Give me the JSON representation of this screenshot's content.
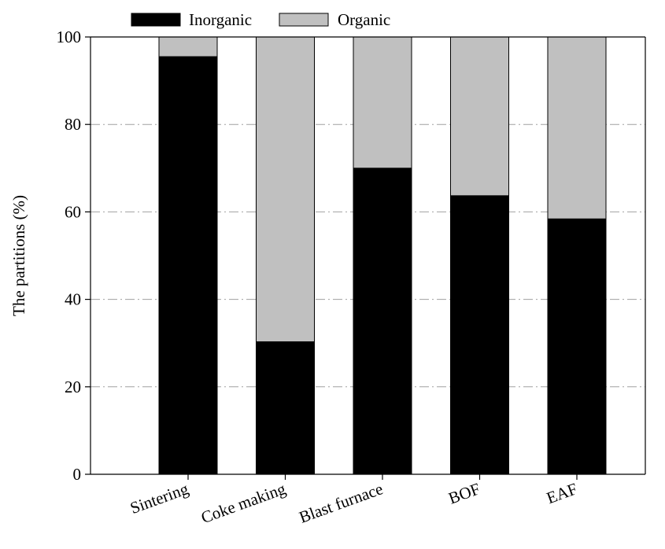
{
  "chart_data": {
    "type": "bar",
    "stacked": true,
    "categories": [
      "Sintering",
      "Coke making",
      "Blast furnace",
      "BOF",
      "EAF"
    ],
    "series": [
      {
        "name": "Inorganic",
        "color": "#000000",
        "values": [
          95.5,
          30.3,
          70.0,
          63.7,
          58.4
        ]
      },
      {
        "name": "Organic",
        "color": "#c0c0c0",
        "values": [
          4.5,
          69.7,
          30.0,
          36.3,
          41.6
        ]
      }
    ],
    "title": "",
    "xlabel": "",
    "ylabel": "The partitions (%)",
    "ylim": [
      0,
      100
    ],
    "yticks": [
      0,
      20,
      40,
      60,
      80,
      100
    ],
    "grid": "horizontal dash-dot",
    "legend_position": "top"
  }
}
